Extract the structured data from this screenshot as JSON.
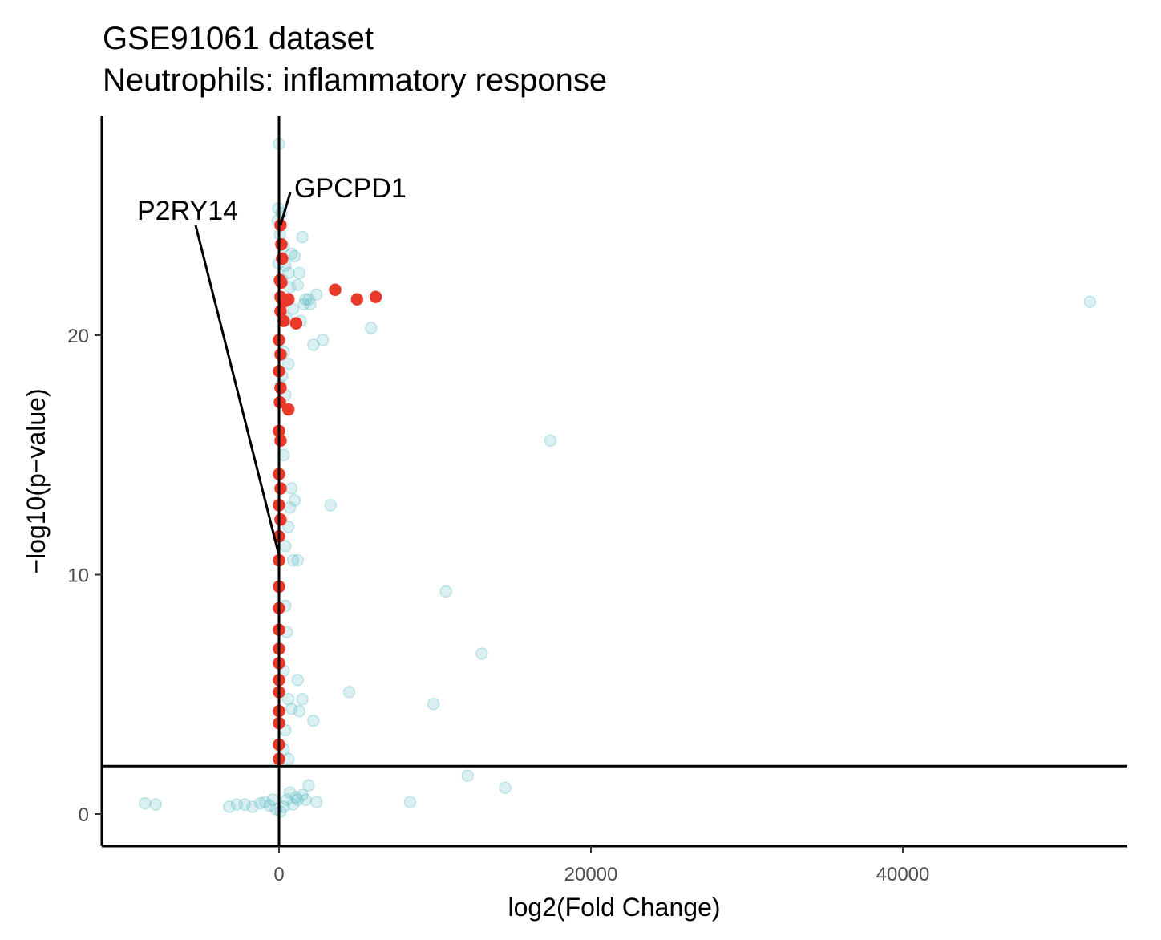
{
  "chart_data": {
    "type": "scatter",
    "title": "GSE91061 dataset",
    "subtitle": "Neutrophils: inflammatory response",
    "xlabel": "log2(Fold Change)",
    "ylabel": "−log10(p−value)",
    "xlim": [
      -1150,
      54500
    ],
    "ylim": [
      -1.3,
      29
    ],
    "x_ticks": [
      {
        "value": 0,
        "label": "0"
      },
      {
        "value": 20000,
        "label": "20000"
      },
      {
        "value": 40000,
        "label": "40000"
      }
    ],
    "y_ticks": [
      {
        "value": 0,
        "label": "0"
      },
      {
        "value": 10,
        "label": "10"
      },
      {
        "value": 20,
        "label": "20"
      }
    ],
    "reference_lines": {
      "vertical_x": 0,
      "horizontal_y": 2
    },
    "grid": false,
    "legend": "none",
    "colors": {
      "background_points": "#5bbcc4",
      "highlight_points": "#e8392a",
      "lines": "#000000"
    },
    "series": [
      {
        "role": "background",
        "color": "#5bbcc4",
        "points": [
          [
            0,
            28
          ],
          [
            -50,
            25.3
          ],
          [
            150,
            25.1
          ],
          [
            -80,
            24.8
          ],
          [
            60,
            24.2
          ],
          [
            1500,
            24.1
          ],
          [
            300,
            23.7
          ],
          [
            800,
            23.4
          ],
          [
            1000,
            23.3
          ],
          [
            -30,
            23.0
          ],
          [
            400,
            22.9
          ],
          [
            600,
            22.6
          ],
          [
            1300,
            22.6
          ],
          [
            200,
            22.3
          ],
          [
            700,
            22.0
          ],
          [
            1200,
            22.1
          ],
          [
            2400,
            21.7
          ],
          [
            1900,
            21.5
          ],
          [
            1700,
            21.5
          ],
          [
            2000,
            21.3
          ],
          [
            1600,
            21.3
          ],
          [
            900,
            21.1
          ],
          [
            500,
            20.7
          ],
          [
            1400,
            20.6
          ],
          [
            5900,
            20.3
          ],
          [
            2800,
            19.8
          ],
          [
            2200,
            19.6
          ],
          [
            300,
            19.3
          ],
          [
            600,
            18.8
          ],
          [
            200,
            18.3
          ],
          [
            100,
            17.9
          ],
          [
            400,
            17.5
          ],
          [
            17400,
            15.6
          ],
          [
            300,
            15.0
          ],
          [
            800,
            13.6
          ],
          [
            1000,
            13.1
          ],
          [
            3300,
            12.9
          ],
          [
            700,
            12.8
          ],
          [
            600,
            12.0
          ],
          [
            400,
            11.2
          ],
          [
            900,
            10.6
          ],
          [
            1200,
            10.6
          ],
          [
            10700,
            9.3
          ],
          [
            400,
            8.7
          ],
          [
            500,
            7.6
          ],
          [
            13000,
            6.7
          ],
          [
            300,
            6.0
          ],
          [
            1200,
            5.6
          ],
          [
            4500,
            5.1
          ],
          [
            600,
            4.8
          ],
          [
            1500,
            4.8
          ],
          [
            9900,
            4.6
          ],
          [
            800,
            4.4
          ],
          [
            1300,
            4.3
          ],
          [
            2200,
            3.9
          ],
          [
            400,
            3.5
          ],
          [
            300,
            2.7
          ],
          [
            600,
            2.3
          ],
          [
            12100,
            1.6
          ],
          [
            14500,
            1.1
          ],
          [
            1900,
            1.2
          ],
          [
            1200,
            0.6
          ],
          [
            2400,
            0.5
          ],
          [
            8400,
            0.5
          ],
          [
            -8600,
            0.45
          ],
          [
            -7900,
            0.4
          ],
          [
            -3200,
            0.3
          ],
          [
            -2700,
            0.4
          ],
          [
            -2200,
            0.4
          ],
          [
            -1700,
            0.3
          ],
          [
            -1200,
            0.45
          ],
          [
            -900,
            0.5
          ],
          [
            -600,
            0.35
          ],
          [
            -400,
            0.6
          ],
          [
            -200,
            0.2
          ],
          [
            100,
            0.1
          ],
          [
            300,
            0.3
          ],
          [
            500,
            0.6
          ],
          [
            700,
            0.9
          ],
          [
            900,
            0.4
          ],
          [
            1100,
            0.7
          ],
          [
            1500,
            0.8
          ],
          [
            1700,
            0.6
          ],
          [
            52000,
            21.4
          ]
        ]
      },
      {
        "role": "highlight",
        "color": "#e8392a",
        "points": [
          [
            100,
            24.6
          ],
          [
            150,
            23.8
          ],
          [
            200,
            23.2
          ],
          [
            50,
            22.3
          ],
          [
            150,
            22.2
          ],
          [
            100,
            21.6
          ],
          [
            300,
            21.4
          ],
          [
            600,
            21.5
          ],
          [
            3600,
            21.9
          ],
          [
            5000,
            21.5
          ],
          [
            6200,
            21.6
          ],
          [
            100,
            21.0
          ],
          [
            300,
            20.6
          ],
          [
            1100,
            20.5
          ],
          [
            0,
            19.8
          ],
          [
            100,
            19.2
          ],
          [
            0,
            18.5
          ],
          [
            100,
            17.8
          ],
          [
            50,
            17.2
          ],
          [
            600,
            16.9
          ],
          [
            0,
            16.0
          ],
          [
            100,
            15.6
          ],
          [
            0,
            14.2
          ],
          [
            100,
            13.6
          ],
          [
            0,
            12.9
          ],
          [
            100,
            12.3
          ],
          [
            0,
            11.6
          ],
          [
            0,
            10.6
          ],
          [
            0,
            9.5
          ],
          [
            0,
            8.6
          ],
          [
            0,
            7.7
          ],
          [
            0,
            6.9
          ],
          [
            0,
            6.3
          ],
          [
            0,
            5.6
          ],
          [
            0,
            5.1
          ],
          [
            0,
            4.3
          ],
          [
            0,
            3.8
          ],
          [
            0,
            2.9
          ],
          [
            0,
            2.3
          ]
        ]
      }
    ],
    "annotations": [
      {
        "label": "P2RY14",
        "point": [
          0,
          10.8
        ]
      },
      {
        "label": "GPCPD1",
        "point": [
          100,
          24.6
        ]
      }
    ]
  }
}
